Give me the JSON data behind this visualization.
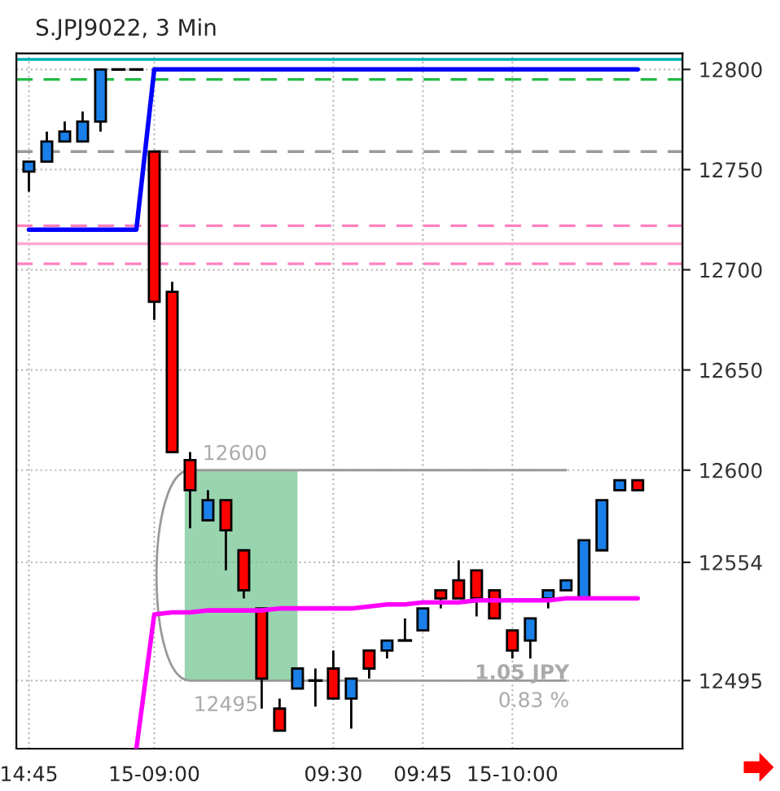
{
  "chart_data": {
    "type": "candlestick",
    "title": "S.JPJ9022, 3 Min",
    "categories": [
      "14:45",
      null,
      null,
      null,
      null,
      null,
      null,
      "15-09:00",
      null,
      null,
      null,
      null,
      null,
      null,
      null,
      null,
      null,
      "09:30",
      null,
      null,
      null,
      null,
      "09:45",
      null,
      null,
      null,
      null,
      "15-10:00",
      null,
      null,
      null,
      null,
      null,
      null,
      null
    ],
    "ohlc": [
      [
        12749,
        12754,
        12739,
        12754
      ],
      [
        12754,
        12769,
        12754,
        12764
      ],
      [
        12764,
        12774,
        12764,
        12769
      ],
      [
        12764,
        12779,
        12764,
        12774
      ],
      [
        12774,
        12800,
        12769,
        12800
      ],
      [
        12800,
        12800,
        12800,
        12800
      ],
      [
        12800,
        12800,
        12800,
        12800
      ],
      [
        12759,
        12759,
        12675,
        12684
      ],
      [
        12689,
        12694,
        12609,
        12609
      ],
      [
        12605,
        12609,
        12571,
        12590
      ],
      [
        12575,
        12590,
        12575,
        12585
      ],
      [
        12585,
        12585,
        12550,
        12570
      ],
      [
        12560,
        12560,
        12536,
        12540
      ],
      [
        12531,
        12531,
        12481,
        12496
      ],
      [
        12481,
        12486,
        12470,
        12470
      ],
      [
        12491,
        12501,
        12491,
        12501
      ],
      [
        12495,
        12501,
        12482,
        12495
      ],
      [
        12501,
        12510,
        12486,
        12486
      ],
      [
        12486,
        12496,
        12471,
        12496
      ],
      [
        12510,
        12510,
        12496,
        12501
      ],
      [
        12510,
        12515,
        12506,
        12515
      ],
      [
        12515,
        12526,
        12515,
        12515
      ],
      [
        12520,
        12531,
        12520,
        12531
      ],
      [
        12540,
        12540,
        12531,
        12536
      ],
      [
        12545,
        12555,
        12536,
        12536
      ],
      [
        12550,
        12550,
        12527,
        12536
      ],
      [
        12540,
        12540,
        12526,
        12526
      ],
      [
        12520,
        12520,
        12506,
        12510
      ],
      [
        12515,
        12526,
        12506,
        12526
      ],
      [
        12536,
        12540,
        12531,
        12540
      ],
      [
        12540,
        12545,
        12540,
        12545
      ],
      [
        12536,
        12565,
        12536,
        12565
      ],
      [
        12560,
        12585,
        12560,
        12585
      ],
      [
        12590,
        12595,
        12590,
        12595
      ],
      [
        12595,
        12595,
        12590,
        12590
      ]
    ],
    "colors": [
      "#1a7fe8",
      "#1a7fe8",
      "#1a7fe8",
      "#1a7fe8",
      "#1a7fe8",
      "#000000",
      "#000000",
      "#ff0000",
      "#ff0000",
      "#ff0000",
      "#1a7fe8",
      "#ff0000",
      "#ff0000",
      "#ff0000",
      "#ff0000",
      "#1a7fe8",
      "#000000",
      "#ff0000",
      "#1a7fe8",
      "#ff0000",
      "#1a7fe8",
      "#000000",
      "#1a7fe8",
      "#ff0000",
      "#ff0000",
      "#ff0000",
      "#ff0000",
      "#ff0000",
      "#1a7fe8",
      "#1a7fe8",
      "#1a7fe8",
      "#1a7fe8",
      "#1a7fe8",
      "#1a7fe8",
      "#ff0000"
    ],
    "series": [
      {
        "type": "line",
        "color": "#0000ff",
        "values": [
          12720,
          12720,
          12720,
          12720,
          12720,
          12720,
          12720,
          12800,
          12800,
          12800,
          12800,
          12800,
          12800,
          12800,
          12800,
          12800,
          12800,
          12800,
          12800,
          12800,
          12800,
          12800,
          12800,
          12800,
          12800,
          12800,
          12800,
          12800,
          12800,
          12800,
          12800,
          12800,
          12800,
          12800,
          12800
        ]
      },
      {
        "type": "line",
        "color": "#ff00ff",
        "values": [
          null,
          null,
          null,
          null,
          null,
          null,
          12461,
          12528,
          12529,
          12529,
          12530,
          12530,
          12530,
          12530,
          12531,
          12531,
          12531,
          12531,
          12531,
          12532,
          12533,
          12533,
          12534,
          12534,
          12534,
          12535,
          12535,
          12535,
          12535,
          12535,
          12536,
          12536,
          12536,
          12536,
          12536
        ]
      }
    ],
    "ylim": [
      12461,
      12808
    ],
    "yticks": [
      12495,
      12554,
      12600,
      12650,
      12700,
      12750,
      12800
    ],
    "ref_lines": [
      {
        "axis": "y",
        "value": 12805,
        "color": "#00b0b0",
        "line_style": "solid"
      },
      {
        "axis": "y",
        "value": 12795,
        "color": "#22bb44",
        "line_style": "dashed"
      },
      {
        "axis": "y",
        "value": 12759,
        "color": "#999999",
        "line_style": "dashed"
      },
      {
        "axis": "y",
        "value": 12722,
        "color": "#ff80c0",
        "line_style": "dashed"
      },
      {
        "axis": "y",
        "value": 12713,
        "color": "#ffaad4",
        "line_style": "solid"
      },
      {
        "axis": "y",
        "value": 12703,
        "color": "#ff80c0",
        "line_style": "dashed"
      }
    ],
    "bands": [
      {
        "axis": "y",
        "from": 12495,
        "to": 12600,
        "color": "#6cc38c"
      }
    ],
    "annotations": [
      {
        "text": "12600",
        "y": 12600
      },
      {
        "text": "12495",
        "y": 12495
      },
      "1.05 JPY",
      "0.83 %"
    ],
    "grid": true
  }
}
